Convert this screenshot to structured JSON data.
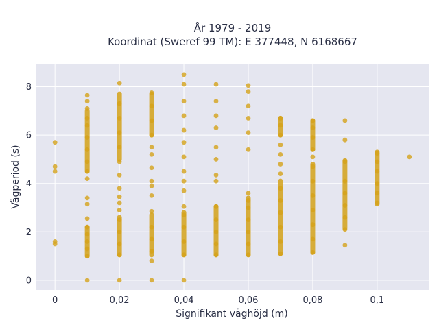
{
  "chart_data": {
    "type": "scatter",
    "title_line1": "År 1979 - 2019",
    "title_line2": "Koordinat (Sweref 99 TM): E 377448, N 6168667",
    "xlabel": "Signifikant våghöjd (m)",
    "ylabel": "Vågperiod (s)",
    "xlim": [
      -0.006,
      0.116
    ],
    "ylim": [
      -0.4,
      8.95
    ],
    "x_ticks": [
      0,
      0.02,
      0.04,
      0.06,
      0.08,
      0.1
    ],
    "x_tick_labels": [
      "0",
      "0,02",
      "0,04",
      "0,06",
      "0,08",
      "0,1"
    ],
    "y_ticks": [
      0,
      2,
      4,
      6,
      8
    ],
    "y_tick_labels": [
      "0",
      "2",
      "4",
      "6",
      "8"
    ],
    "grid": true,
    "legend": "none",
    "colors": {
      "plot_bg": "#e5e6f0",
      "grid": "#ffffff",
      "marker": "#d4a21a",
      "text": "#2a2f45"
    },
    "series": [
      {
        "x": [
          0,
          0,
          0,
          0,
          0
        ],
        "y": [
          1.5,
          1.6,
          4.5,
          4.7,
          5.7
        ]
      },
      {
        "x": [
          0.01,
          0.01,
          0.01,
          0.01,
          0.01,
          0.01,
          0.01,
          0.01,
          0.01,
          0.01,
          0.01,
          0.01,
          0.01,
          0.01,
          0.01,
          0.01,
          0.01,
          0.01,
          0.01
        ],
        "y": [
          0,
          1.0,
          1.3,
          1.6,
          1.9,
          2.2,
          2.55,
          3.15,
          3.4,
          4.2,
          4.5,
          4.9,
          5.4,
          5.9,
          6.4,
          6.7,
          7.1,
          7.4,
          7.65
        ]
      },
      {
        "x": [
          0.02,
          0.02,
          0.02,
          0.02,
          0.02,
          0.02,
          0.02,
          0.02,
          0.02,
          0.02,
          0.02,
          0.02,
          0.02,
          0.02,
          0.02,
          0.02
        ],
        "y": [
          0,
          1.05,
          1.5,
          2.0,
          2.5,
          2.9,
          3.2,
          3.45,
          3.8,
          4.35,
          4.9,
          5.5,
          6.1,
          6.7,
          7.3,
          8.15
        ]
      },
      {
        "x": [
          0.03,
          0.03,
          0.03,
          0.03,
          0.03,
          0.03,
          0.03,
          0.03,
          0.03,
          0.03,
          0.03,
          0.03,
          0.03,
          0.03,
          0.03,
          0.03
        ],
        "y": [
          0,
          0.8,
          1.2,
          1.7,
          2.2,
          2.85,
          3.5,
          3.9,
          4.1,
          4.65,
          5.2,
          5.5,
          6.0,
          6.6,
          7.2,
          7.75
        ]
      },
      {
        "x": [
          0.04,
          0.04,
          0.04,
          0.04,
          0.04,
          0.04,
          0.04,
          0.04,
          0.04,
          0.04,
          0.04,
          0.04,
          0.04,
          0.04,
          0.04,
          0.04
        ],
        "y": [
          0,
          1.05,
          1.6,
          2.2,
          2.7,
          3.05,
          3.7,
          4.1,
          4.5,
          5.1,
          5.7,
          6.2,
          6.8,
          7.4,
          8.1,
          8.5
        ]
      },
      {
        "x": [
          0.05,
          0.05,
          0.05,
          0.05,
          0.05,
          0.05,
          0.05,
          0.05,
          0.05,
          0.05,
          0.05,
          0.05,
          0.05
        ],
        "y": [
          1.05,
          1.5,
          2.0,
          2.5,
          3.05,
          4.1,
          4.35,
          5.0,
          5.5,
          6.3,
          6.8,
          7.4,
          8.1
        ]
      },
      {
        "x": [
          0.06,
          0.06,
          0.06,
          0.06,
          0.06,
          0.06,
          0.06,
          0.06,
          0.06,
          0.06,
          0.06,
          0.06,
          0.06
        ],
        "y": [
          1.05,
          1.5,
          2.0,
          2.5,
          3.0,
          3.3,
          3.6,
          5.4,
          6.1,
          6.7,
          7.2,
          7.8,
          8.05
        ]
      },
      {
        "x": [
          0.07,
          0.07,
          0.07,
          0.07,
          0.07,
          0.07,
          0.07,
          0.07,
          0.07,
          0.07,
          0.07,
          0.07,
          0.07
        ],
        "y": [
          1.1,
          1.6,
          2.2,
          2.8,
          3.3,
          3.8,
          4.4,
          4.8,
          5.2,
          5.6,
          6.0,
          6.4,
          6.7
        ]
      },
      {
        "x": [
          0.08,
          0.08,
          0.08,
          0.08,
          0.08,
          0.08,
          0.08,
          0.08,
          0.08,
          0.08,
          0.08,
          0.08
        ],
        "y": [
          1.15,
          1.7,
          2.3,
          2.9,
          3.5,
          4.1,
          4.7,
          5.1,
          5.4,
          5.9,
          6.3,
          6.6
        ]
      },
      {
        "x": [
          0.09,
          0.09,
          0.09,
          0.09,
          0.09,
          0.09,
          0.09,
          0.09,
          0.09
        ],
        "y": [
          1.45,
          2.1,
          2.6,
          3.1,
          3.6,
          4.1,
          4.9,
          5.8,
          6.6
        ]
      },
      {
        "x": [
          0.1,
          0.1,
          0.1,
          0.1,
          0.1,
          0.1
        ],
        "y": [
          3.2,
          3.6,
          4.0,
          4.5,
          4.9,
          5.25
        ]
      },
      {
        "x": [
          0.11
        ],
        "y": [
          5.1
        ]
      }
    ],
    "dense_ranges": [
      {
        "x": 0.01,
        "y_from": 1.0,
        "y_to": 2.2
      },
      {
        "x": 0.01,
        "y_from": 4.5,
        "y_to": 7.0
      },
      {
        "x": 0.02,
        "y_from": 1.05,
        "y_to": 2.6
      },
      {
        "x": 0.02,
        "y_from": 5.0,
        "y_to": 7.7
      },
      {
        "x": 0.03,
        "y_from": 1.05,
        "y_to": 2.7
      },
      {
        "x": 0.03,
        "y_from": 6.0,
        "y_to": 7.7
      },
      {
        "x": 0.04,
        "y_from": 1.05,
        "y_to": 2.8
      },
      {
        "x": 0.05,
        "y_from": 1.05,
        "y_to": 3.05
      },
      {
        "x": 0.06,
        "y_from": 1.05,
        "y_to": 3.4
      },
      {
        "x": 0.07,
        "y_from": 1.1,
        "y_to": 4.1
      },
      {
        "x": 0.07,
        "y_from": 6.0,
        "y_to": 6.7
      },
      {
        "x": 0.08,
        "y_from": 1.15,
        "y_to": 4.8
      },
      {
        "x": 0.08,
        "y_from": 5.4,
        "y_to": 6.6
      },
      {
        "x": 0.09,
        "y_from": 2.15,
        "y_to": 4.95
      },
      {
        "x": 0.1,
        "y_from": 3.15,
        "y_to": 5.3
      }
    ]
  }
}
